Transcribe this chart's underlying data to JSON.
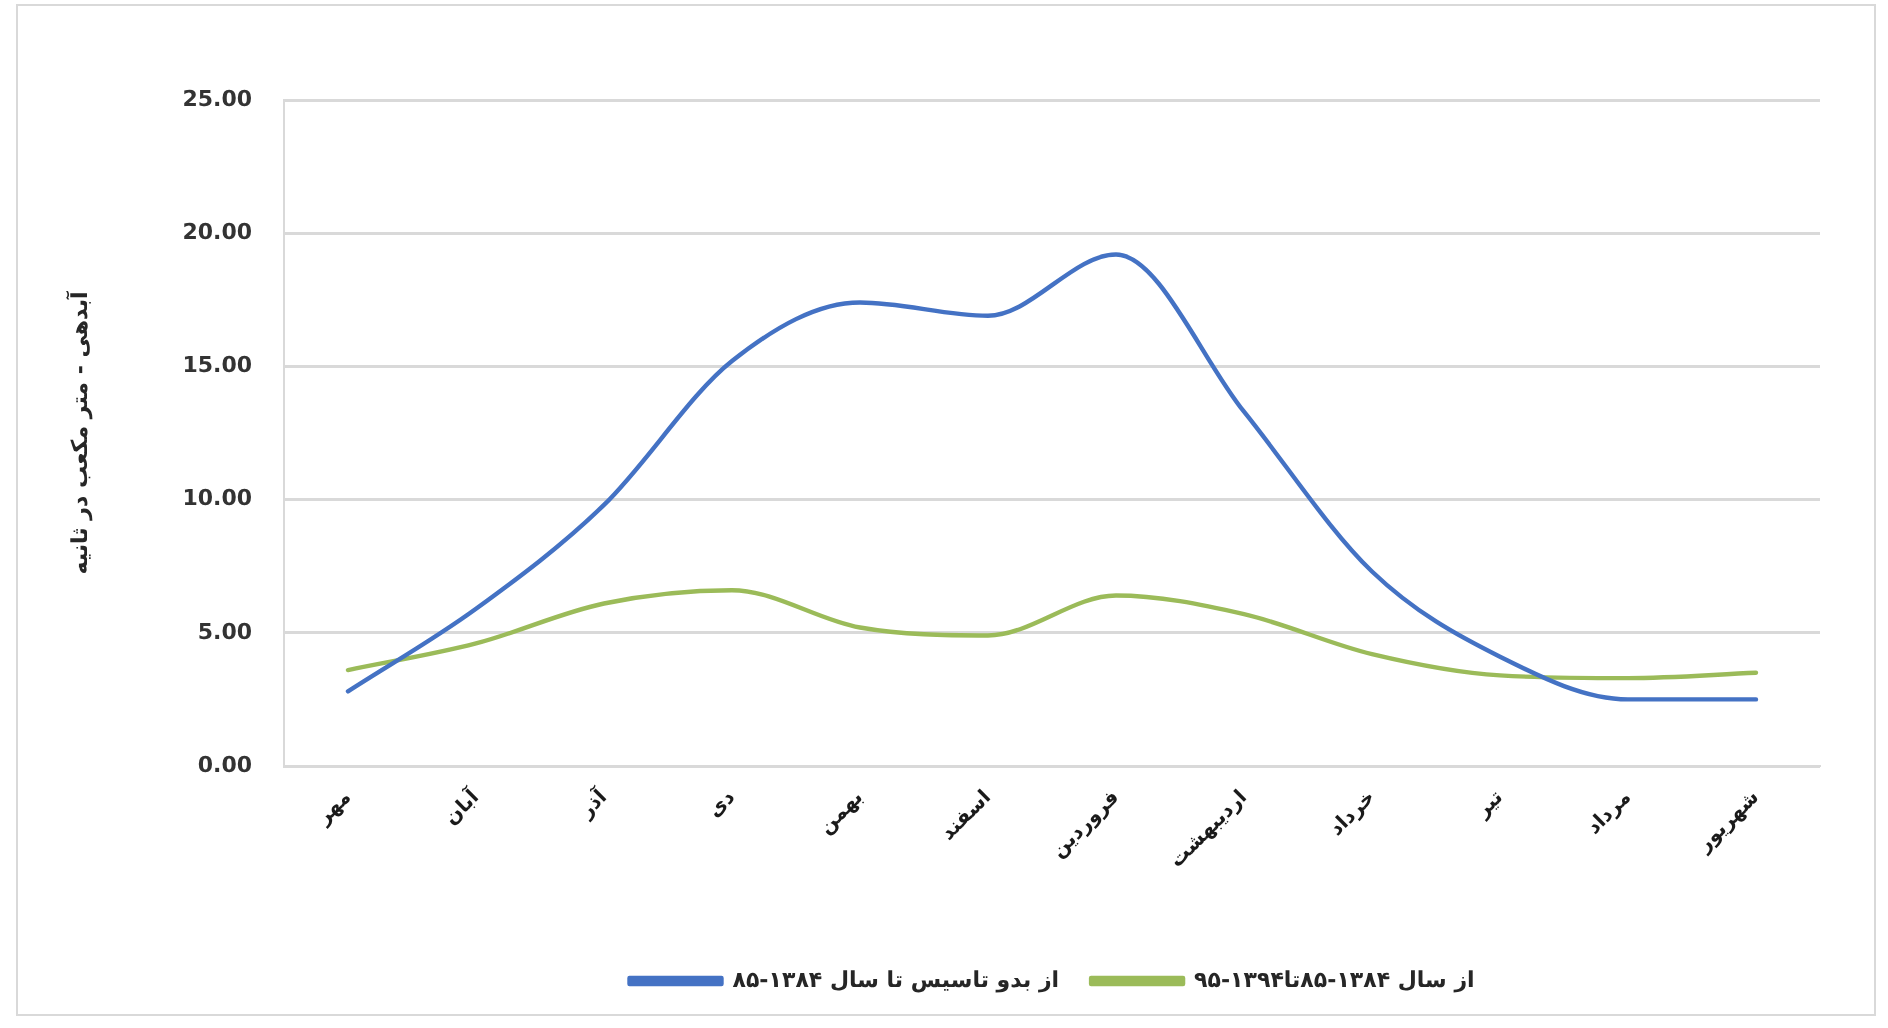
{
  "chart_data": {
    "type": "line",
    "ylabel": "آبدهی - متر مکعب در ثانیه",
    "categories": [
      "مهر",
      "آبان",
      "آذر",
      "دی",
      "بهمن",
      "اسفند",
      "فروردین",
      "اردیبهشت",
      "خرداد",
      "تیر",
      "مرداد",
      "شهریور"
    ],
    "series": [
      {
        "name": "از بدو تاسیس تا سال ۱۳۸۴-۸۵",
        "color": "#4472c4",
        "values": [
          2.8,
          5.9,
          9.8,
          15.2,
          17.4,
          16.9,
          19.2,
          13.3,
          7.3,
          4.1,
          2.5,
          2.5
        ]
      },
      {
        "name": "از سال ۱۳۸۴-۸۵تا۱۳۹۴-۹۵",
        "color": "#9bbb59",
        "values": [
          3.6,
          4.6,
          6.1,
          6.6,
          5.2,
          4.9,
          6.4,
          5.7,
          4.2,
          3.4,
          3.3,
          3.5
        ]
      }
    ],
    "ylim": [
      0,
      25
    ],
    "yticks": [
      {
        "value": 0,
        "label": "0.00"
      },
      {
        "value": 5,
        "label": "5.00"
      },
      {
        "value": 10,
        "label": "10.00"
      },
      {
        "value": 15,
        "label": "15.00"
      },
      {
        "value": 20,
        "label": "20.00"
      },
      {
        "value": 25,
        "label": "25.00"
      }
    ],
    "grid": "y",
    "legend": "bottom",
    "marker": "none",
    "line_style": "solid"
  }
}
